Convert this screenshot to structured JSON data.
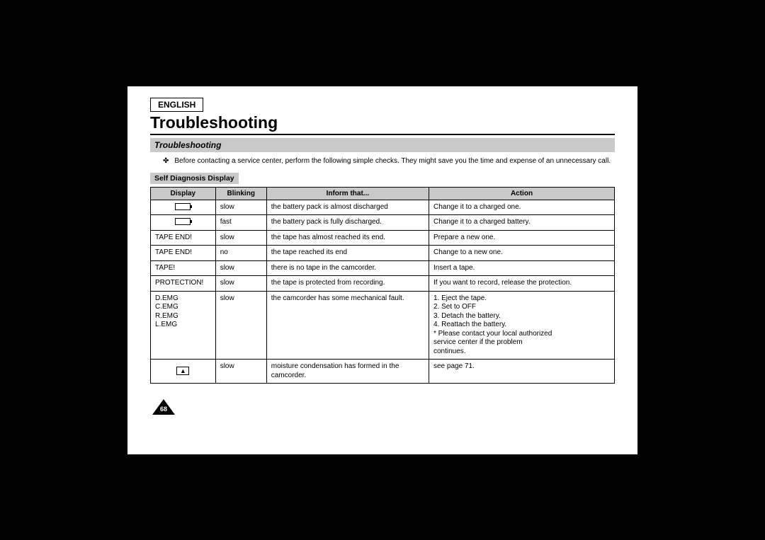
{
  "language_label": "ENGLISH",
  "page_title": "Troubleshooting",
  "subtitle": "Troubleshooting",
  "intro_bullet": "✤",
  "intro_text": "Before contacting a service center, perform the following simple checks. They might save you the time and expense of an unnecessary call.",
  "section_label": "Self Diagnosis Display",
  "columns": {
    "display": "Display",
    "blinking": "Blinking",
    "inform": "Inform that...",
    "action": "Action"
  },
  "rows": [
    {
      "display_icon": "battery",
      "display": "",
      "blinking": "slow",
      "inform": "the battery pack is almost discharged",
      "action": "Change it to a charged one."
    },
    {
      "display_icon": "battery",
      "display": "",
      "blinking": "fast",
      "inform": "the battery pack is fully discharged.",
      "action": "Change it to a charged battery."
    },
    {
      "display": "TAPE END!",
      "blinking": "slow",
      "inform": "the tape has almost reached its end.",
      "action": "Prepare a new one."
    },
    {
      "display": "TAPE END!",
      "blinking": "no",
      "inform": "the tape reached its end",
      "action": "Change to a new one."
    },
    {
      "display": "TAPE!",
      "blinking": "slow",
      "inform": "there is no tape in the camcorder.",
      "action": "Insert a tape."
    },
    {
      "display": "PROTECTION!",
      "blinking": "slow",
      "inform": "the tape is protected from recording.",
      "action": "If you want to record, release the protection."
    },
    {
      "display": "D.EMG\nC.EMG\nR.EMG\nL.EMG",
      "blinking": "slow",
      "inform": "the camcorder has some mechanical fault.",
      "action": "1. Eject the tape.\n2. Set to OFF\n3. Detach the battery.\n4. Reattach the battery.\n * Please contact your local authorized\n    service center if the problem\n    continues."
    },
    {
      "display_icon": "drop",
      "display": "",
      "blinking": "slow",
      "inform": "moisture condensation has formed in the camcorder.",
      "action": "see page 71."
    }
  ],
  "page_number": "68",
  "colors": {
    "page_bg": "#ffffff",
    "outer_bg": "#000000",
    "bar_bg": "#c9c9c9",
    "border": "#000000"
  }
}
